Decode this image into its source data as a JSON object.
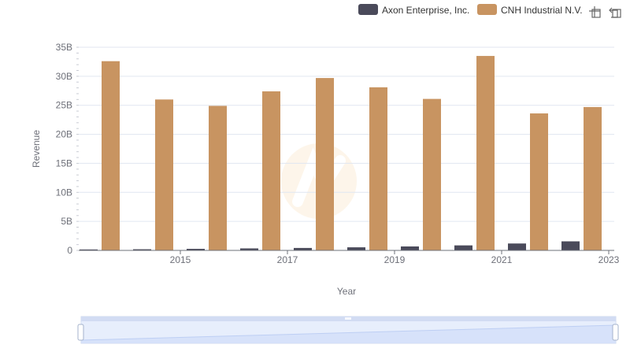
{
  "chart_data": {
    "type": "bar",
    "x": [
      2014,
      2015,
      2016,
      2017,
      2018,
      2019,
      2020,
      2021,
      2022,
      2023
    ],
    "x_tick_labels": [
      "2015",
      "2017",
      "2019",
      "2021",
      "2023"
    ],
    "xlabel": "Year",
    "ylabel": "Revenue",
    "ylim": [
      0,
      35000000000
    ],
    "y_tick_labels": [
      "0",
      "5B",
      "10B",
      "15B",
      "20B",
      "25B",
      "30B",
      "35B"
    ],
    "grid": true,
    "legend_position": "top-right",
    "series": [
      {
        "name": "Axon Enterprise, Inc.",
        "color": "#4a4a5a",
        "values": [
          164500000,
          197900000,
          268200000,
          343800000,
          420100000,
          530900000,
          681000000,
          863400000,
          1190000000,
          1560000000
        ]
      },
      {
        "name": "CNH Industrial N.V.",
        "color": "#c89461",
        "values": [
          32600000000,
          26000000000,
          24900000000,
          27400000000,
          29700000000,
          28100000000,
          26100000000,
          33500000000,
          23600000000,
          24700000000
        ]
      }
    ],
    "zoom_slider": {
      "start": 0,
      "end": 100
    }
  },
  "toolbar": {
    "zoom_icon": "zoom-icon",
    "restore_icon": "restore-icon"
  },
  "colors": {
    "grid": "#e0e6f1",
    "axis": "#6e7079",
    "slider_fill": "#d7e3fb",
    "slider_border": "#c6d1e8"
  }
}
